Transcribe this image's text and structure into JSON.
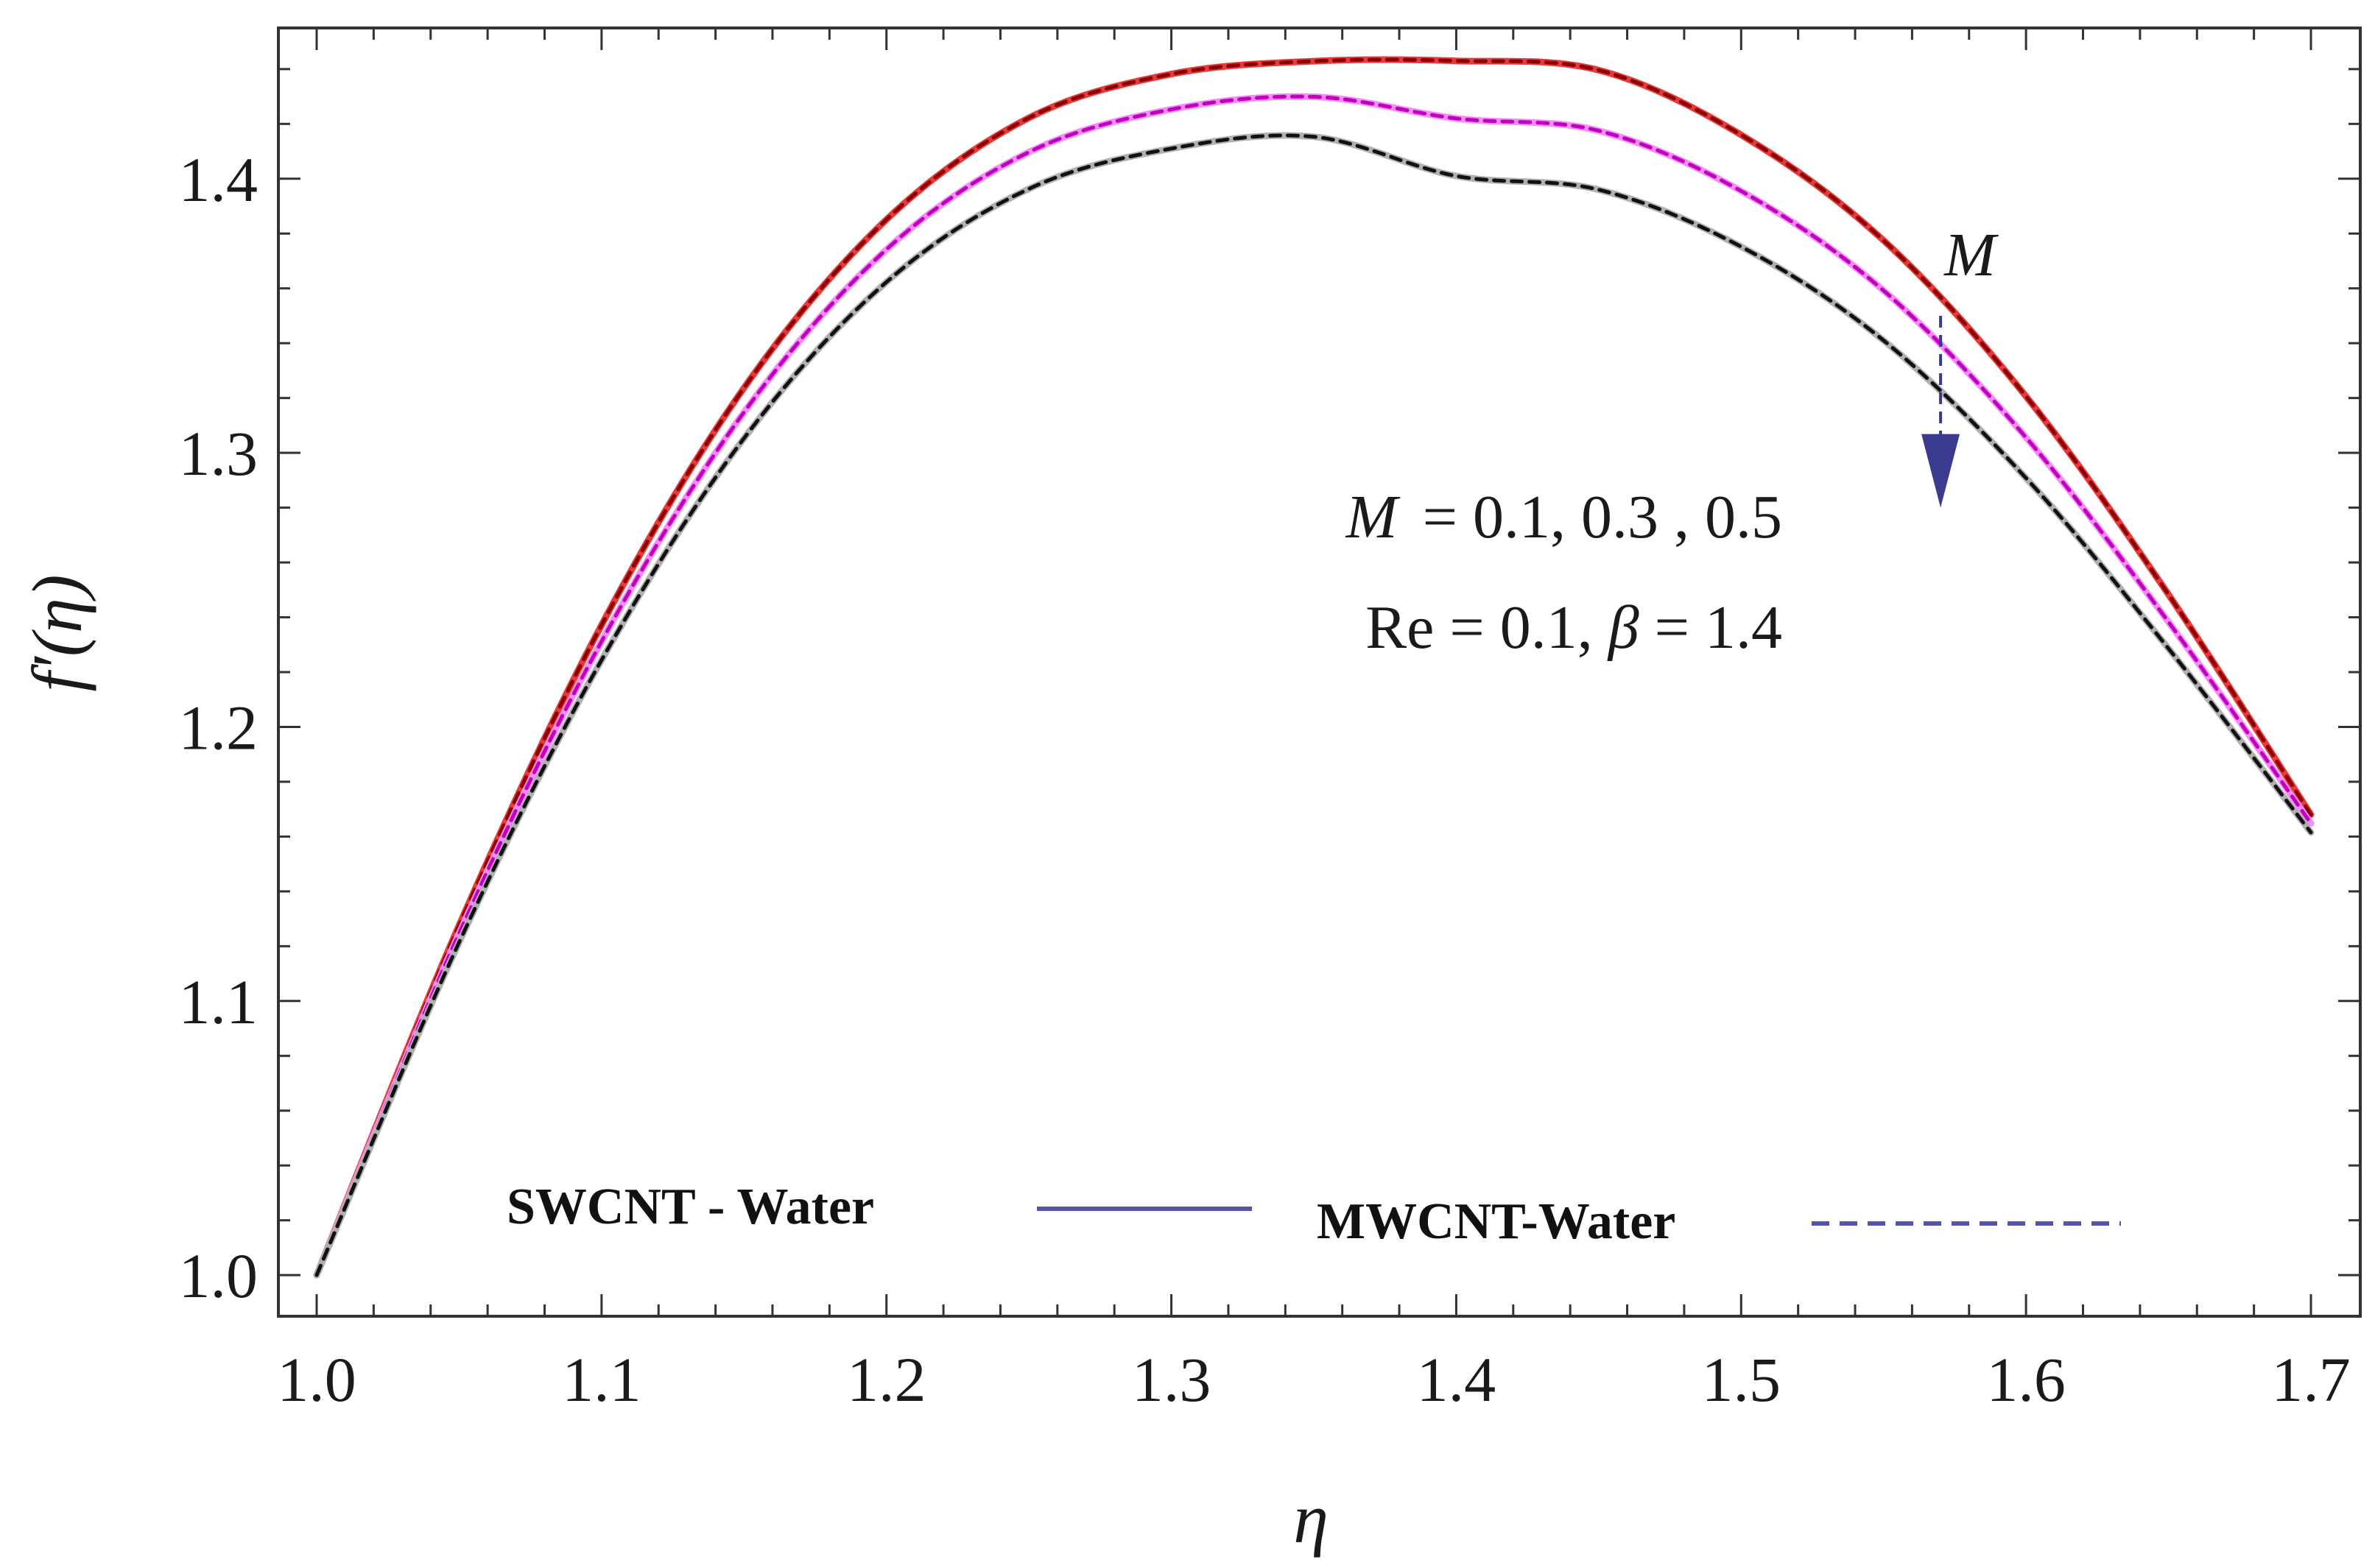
{
  "chart_data": {
    "type": "line",
    "title": "",
    "xlabel": "η",
    "ylabel": "f′(η)",
    "xlim": [
      1.0,
      1.7
    ],
    "ylim": [
      0.985,
      1.455
    ],
    "x_ticks": [
      1.0,
      1.1,
      1.2,
      1.3,
      1.4,
      1.5,
      1.6,
      1.7
    ],
    "x_tick_labels": [
      "1.0",
      "1.1",
      "1.2",
      "1.3",
      "1.4",
      "1.5",
      "1.6",
      "1.7"
    ],
    "y_ticks": [
      1.0,
      1.1,
      1.2,
      1.3,
      1.4
    ],
    "y_tick_labels": [
      "1.0",
      "1.1",
      "1.2",
      "1.3",
      "1.4"
    ],
    "grid": false,
    "x": [
      1.0,
      1.05,
      1.1,
      1.15,
      1.2,
      1.25,
      1.3,
      1.35,
      1.4,
      1.45,
      1.5,
      1.55,
      1.6,
      1.65,
      1.7
    ],
    "series": [
      {
        "name": "M = 0.1, SWCNT - Water",
        "color": "#e83a3a",
        "dash": "solid",
        "values": [
          1.0,
          1.1276,
          1.2372,
          1.3237,
          1.3851,
          1.4222,
          1.4382,
          1.4429,
          1.443,
          1.4396,
          1.416,
          1.3775,
          1.3206,
          1.2483,
          1.168
        ]
      },
      {
        "name": "M = 0.1, MWCNT-Water",
        "color": "#8b0000",
        "dash": "dashed",
        "values": [
          1.0,
          1.1276,
          1.2372,
          1.3237,
          1.3851,
          1.4222,
          1.4382,
          1.4429,
          1.443,
          1.4396,
          1.416,
          1.3775,
          1.3206,
          1.2483,
          1.168
        ]
      },
      {
        "name": "M = 0.3, SWCNT - Water",
        "color": "#f48df2",
        "dash": "solid",
        "values": [
          1.0,
          1.1247,
          1.2312,
          1.3148,
          1.3742,
          1.4097,
          1.4253,
          1.4299,
          1.422,
          1.4175,
          1.3955,
          1.3592,
          1.3056,
          1.2383,
          1.1648
        ]
      },
      {
        "name": "M = 0.3, MWCNT-Water",
        "color": "#c000c0",
        "dash": "dashed",
        "values": [
          1.0,
          1.1247,
          1.2312,
          1.3148,
          1.3742,
          1.4097,
          1.4253,
          1.4299,
          1.422,
          1.4175,
          1.3955,
          1.3592,
          1.3056,
          1.2383,
          1.1648
        ]
      },
      {
        "name": "M = 0.5, SWCNT - Water",
        "color": "#b0b0b0",
        "dash": "solid",
        "values": [
          1.0,
          1.1214,
          1.2244,
          1.3053,
          1.3623,
          1.3963,
          1.411,
          1.4153,
          1.401,
          1.396,
          1.3752,
          1.341,
          1.2908,
          1.2286,
          1.1615
        ]
      },
      {
        "name": "M = 0.5, MWCNT-Water",
        "color": "#111111",
        "dash": "dashed",
        "values": [
          1.0,
          1.1214,
          1.2244,
          1.3053,
          1.3623,
          1.3963,
          1.411,
          1.4153,
          1.401,
          1.396,
          1.3752,
          1.341,
          1.2908,
          1.2286,
          1.1615
        ]
      }
    ],
    "annotations": {
      "arrow_label": "M",
      "arrow_direction": "down",
      "arrow_at_x": 1.57,
      "arrow_from_y": 1.35,
      "arrow_to_y": 1.28,
      "param_line1_symbol": "M",
      "param_line1_values": "= 0.1, 0.3 , 0.5",
      "param_line2_pre": "Re = 0.1, ",
      "param_line2_symbol": "β",
      "param_line2_post": " = 1.4"
    },
    "legend": {
      "placement": "bottom-center",
      "entries": [
        {
          "label": "SWCNT - Water",
          "style": "solid",
          "color": "#5555aa"
        },
        {
          "label": "MWCNT-Water",
          "style": "dashed",
          "color": "#5555aa"
        }
      ]
    },
    "arrow_color": "#3a3a8f"
  }
}
